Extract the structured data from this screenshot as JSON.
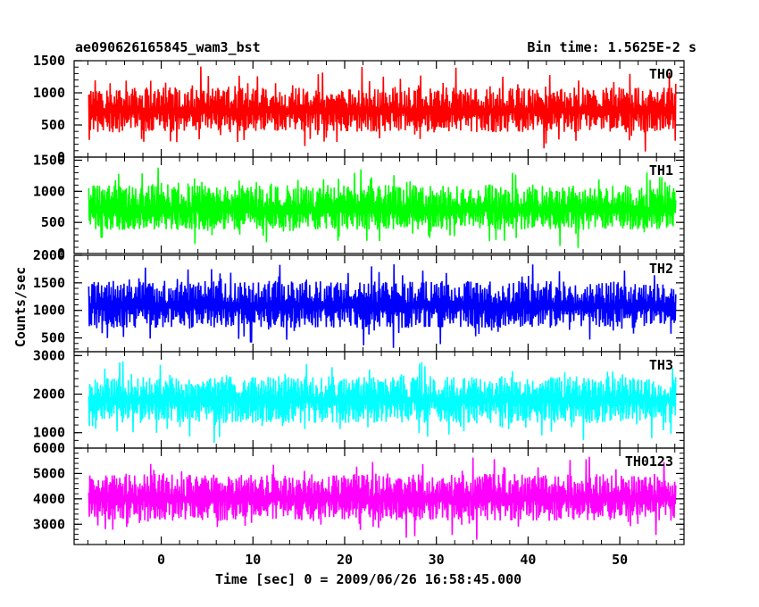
{
  "header": {
    "title_left": "ae090626165845_wam3_bst",
    "title_right": "Bin time: 1.5625E-2 s"
  },
  "axes": {
    "xlabel": "Time [sec] 0 = 2009/06/26 16:58:45.000",
    "ylabel": "Counts/sec"
  },
  "chart_data": [
    {
      "type": "line",
      "panel": "TH0",
      "color": "#ff0000",
      "x_range": [
        -8,
        56
      ],
      "ylim": [
        0,
        1500
      ],
      "yticks": [
        0,
        500,
        1000,
        1500
      ],
      "ytick_labels": [
        "0",
        "500",
        "1000",
        "1500"
      ],
      "series": [
        {
          "name": "TH0",
          "mean": 720,
          "min": 50,
          "max": 1450
        }
      ]
    },
    {
      "type": "line",
      "panel": "TH1",
      "color": "#00ff00",
      "x_range": [
        -8,
        56
      ],
      "ylim": [
        0,
        1550
      ],
      "yticks": [
        0,
        500,
        1000,
        1500
      ],
      "ytick_labels": [
        "0",
        "500",
        "1000",
        "1500"
      ],
      "series": [
        {
          "name": "TH1",
          "mean": 700,
          "min": 60,
          "max": 1500
        }
      ]
    },
    {
      "type": "line",
      "panel": "TH2",
      "color": "#0000ff",
      "x_range": [
        -8,
        56
      ],
      "ylim": [
        250,
        2000
      ],
      "yticks": [
        500,
        1000,
        1500,
        2000
      ],
      "ytick_labels": [
        "500",
        "1000",
        "1500",
        "2000"
      ],
      "series": [
        {
          "name": "TH2",
          "mean": 1080,
          "min": 280,
          "max": 1990
        }
      ]
    },
    {
      "type": "line",
      "panel": "TH3",
      "color": "#00ffff",
      "x_range": [
        -8,
        56
      ],
      "ylim": [
        600,
        3100
      ],
      "yticks": [
        1000,
        2000,
        3000
      ],
      "ytick_labels": [
        "1000",
        "2000",
        "3000"
      ],
      "series": [
        {
          "name": "TH3",
          "mean": 1850,
          "min": 650,
          "max": 3050
        }
      ]
    },
    {
      "type": "line",
      "panel": "TH0123",
      "color": "#ff00ff",
      "x_range": [
        -8,
        56
      ],
      "ylim": [
        2200,
        6000
      ],
      "yticks": [
        3000,
        4000,
        5000,
        6000
      ],
      "ytick_labels": [
        "3000",
        "4000",
        "5000",
        "6000"
      ],
      "series": [
        {
          "name": "TH0123",
          "mean": 4000,
          "min": 2250,
          "max": 6000
        }
      ]
    }
  ],
  "x_axis": {
    "ticks": [
      0,
      10,
      20,
      30,
      40,
      50
    ],
    "tick_labels": [
      "0",
      "10",
      "20",
      "30",
      "40",
      "50"
    ],
    "minor_step": 2
  }
}
